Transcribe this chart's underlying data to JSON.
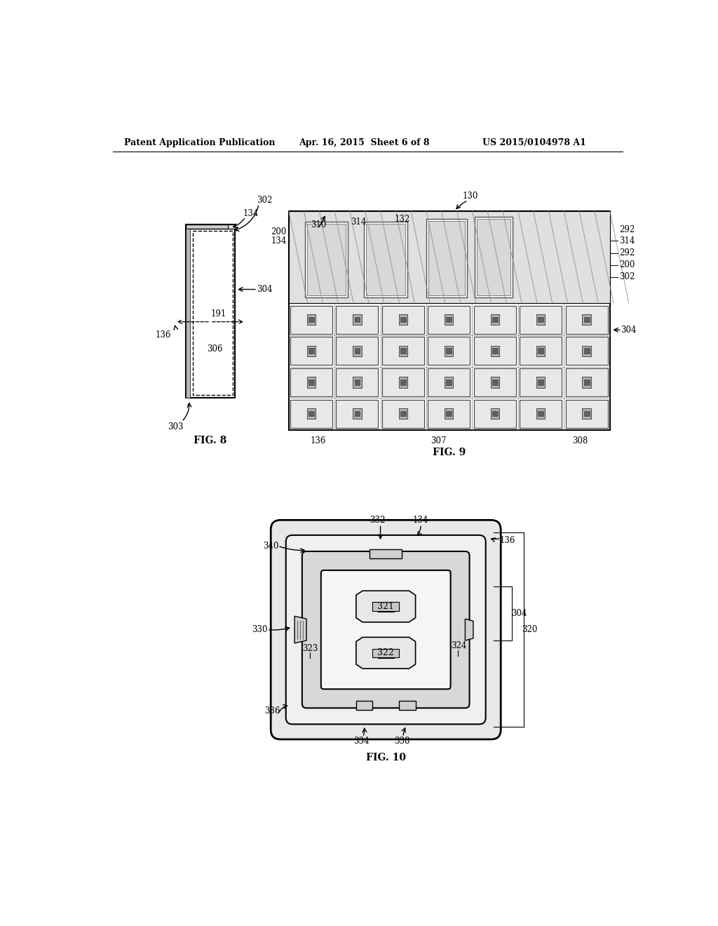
{
  "header_left": "Patent Application Publication",
  "header_mid": "Apr. 16, 2015  Sheet 6 of 8",
  "header_right": "US 2015/0104978 A1",
  "fig8_label": "FIG. 8",
  "fig9_label": "FIG. 9",
  "fig10_label": "FIG. 10",
  "bg_color": "#ffffff",
  "line_color": "#000000",
  "gray_light": "#c8c8c8",
  "gray_mid": "#a0a0a0",
  "gray_dark": "#606060"
}
